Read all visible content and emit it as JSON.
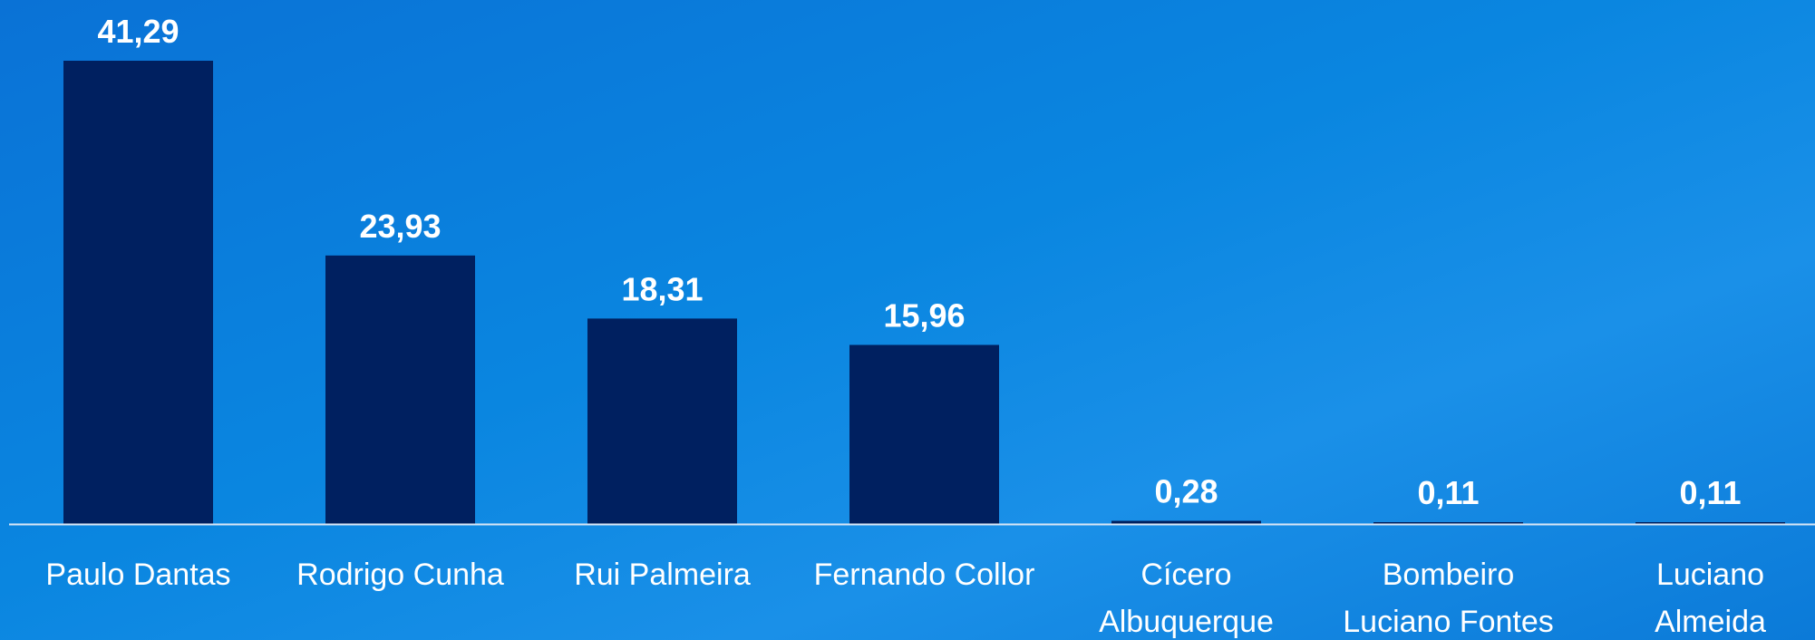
{
  "chart_data": {
    "type": "bar",
    "title": "",
    "xlabel": "",
    "ylabel": "",
    "categories": [
      [
        "Paulo Dantas"
      ],
      [
        "Rodrigo Cunha"
      ],
      [
        "Rui Palmeira"
      ],
      [
        "Fernando Collor"
      ],
      [
        "Cícero",
        "Albuquerque"
      ],
      [
        "Bombeiro",
        "Luciano Fontes"
      ],
      [
        "Luciano",
        "Almeida"
      ]
    ],
    "values": [
      41.29,
      23.93,
      18.31,
      15.96,
      0.28,
      0.11,
      0.11
    ],
    "value_labels": [
      "41,29",
      "23,93",
      "18,31",
      "15,96",
      "0,28",
      "0,11",
      "0,11"
    ],
    "ylim": [
      0,
      41.29
    ],
    "grid": false,
    "legend": "none",
    "colors": {
      "bar": "#002060",
      "axis": "#d9e6f5",
      "text": "#ffffff",
      "background": "#0a82dc"
    }
  }
}
